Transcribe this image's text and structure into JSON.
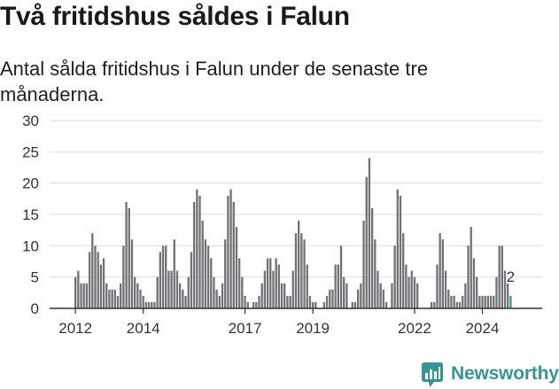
{
  "header": {
    "title": "Två fritidshus såldes i Falun",
    "subtitle": "Antal sålda fritidshus i Falun under de senaste tre månaderna."
  },
  "brand": {
    "name": "Newsworthy",
    "icon": "newsworthy-bar-chart-icon",
    "color": "#3a9393"
  },
  "colors": {
    "bar": "#727176",
    "highlight": "#3a9393",
    "grid": "#dddddd",
    "axis": "#333333"
  },
  "chart_data": {
    "type": "bar",
    "title": "",
    "xlabel": "",
    "ylabel": "",
    "ylim": [
      0,
      30
    ],
    "yticks": [
      0,
      5,
      10,
      15,
      20,
      25,
      30
    ],
    "grid": true,
    "xticks": [
      "2012",
      "2014",
      "2017",
      "2019",
      "2022",
      "2024"
    ],
    "series": [
      {
        "values": [
          5,
          6,
          4,
          4,
          4,
          9,
          12,
          10,
          9,
          7,
          8,
          4,
          3,
          3,
          3,
          2,
          4,
          10,
          17,
          16,
          11,
          5,
          4,
          3,
          2,
          1,
          1,
          1,
          1,
          5,
          9,
          10,
          10,
          6,
          6,
          11,
          6,
          4,
          3,
          2,
          5,
          9,
          17,
          19,
          18,
          14,
          11,
          10,
          8,
          5,
          3,
          2,
          4,
          11,
          18,
          19,
          17,
          13,
          8,
          5,
          2,
          1,
          0,
          1,
          1,
          2,
          4,
          6,
          8,
          8,
          6,
          8,
          7,
          4,
          4,
          2,
          2,
          6,
          12,
          14,
          12,
          11,
          7,
          2,
          1,
          1,
          0,
          0,
          1,
          2,
          3,
          3,
          7,
          7,
          10,
          5,
          4,
          0,
          1,
          1,
          3,
          4,
          14,
          21,
          24,
          16,
          11,
          6,
          4,
          3,
          1,
          0,
          4,
          10,
          19,
          18,
          12,
          7,
          5,
          6,
          5,
          4,
          0,
          0,
          0,
          0,
          1,
          1,
          7,
          12,
          11,
          6,
          3,
          2,
          2,
          1,
          1,
          2,
          4,
          10,
          13,
          8,
          5,
          2,
          2,
          2,
          2,
          2,
          2,
          5,
          10,
          10,
          6,
          4,
          2
        ],
        "highlight_last": true,
        "label_last": "2"
      }
    ]
  }
}
